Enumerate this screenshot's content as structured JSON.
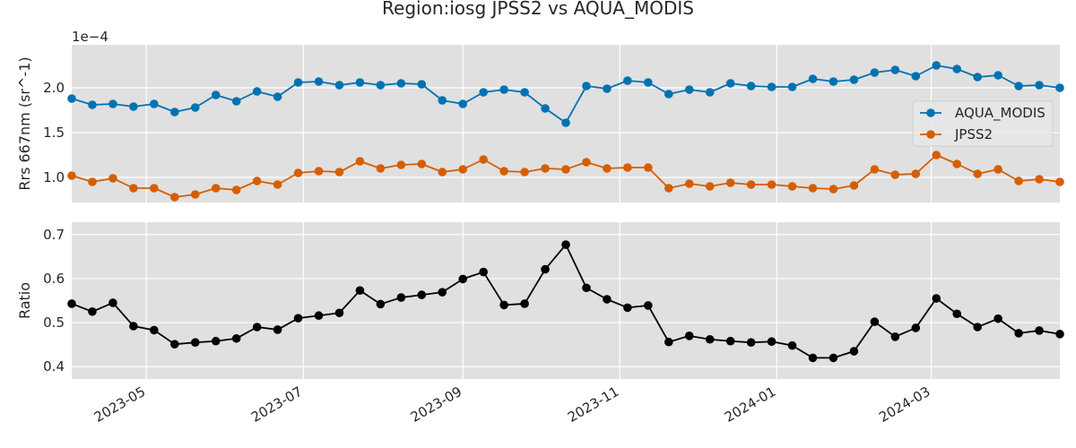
{
  "title": "Region:iosg JPSS2 vs AQUA_MODIS",
  "colors": {
    "aqua": "#0072b2",
    "jpss2": "#d55e00",
    "ratio": "#000000",
    "panel_bg": "#e0e0e0",
    "grid": "#ffffff"
  },
  "chart_data": [
    {
      "type": "line",
      "ylabel": "Rrs 667nm (sr^-1)",
      "scale_label": "1e−4",
      "ylim": [
        0.72,
        2.48
      ],
      "yticks": [
        1.0,
        1.5,
        2.0
      ],
      "ytick_labels": [
        "1.0",
        "1.5",
        "2.0"
      ],
      "legend": {
        "position": "right",
        "entries": [
          "AQUA_MODIS",
          "JPSS2"
        ]
      },
      "grid": true,
      "x": [
        "2023-04-02",
        "2023-04-10",
        "2023-04-18",
        "2023-04-26",
        "2023-05-04",
        "2023-05-12",
        "2023-05-20",
        "2023-05-28",
        "2023-06-05",
        "2023-06-13",
        "2023-06-21",
        "2023-06-29",
        "2023-07-07",
        "2023-07-15",
        "2023-07-23",
        "2023-07-31",
        "2023-08-08",
        "2023-08-16",
        "2023-08-24",
        "2023-09-01",
        "2023-09-09",
        "2023-09-17",
        "2023-09-25",
        "2023-10-03",
        "2023-10-11",
        "2023-10-19",
        "2023-10-27",
        "2023-11-04",
        "2023-11-12",
        "2023-11-20",
        "2023-11-28",
        "2023-12-06",
        "2023-12-14",
        "2023-12-22",
        "2023-12-30",
        "2024-01-07",
        "2024-01-15",
        "2024-01-23",
        "2024-01-31",
        "2024-02-08",
        "2024-02-16",
        "2024-02-24",
        "2024-03-03",
        "2024-03-11",
        "2024-03-19",
        "2024-03-27",
        "2024-04-04",
        "2024-04-12",
        "2024-04-20"
      ],
      "series": [
        {
          "name": "AQUA_MODIS",
          "color": "#0072b2",
          "values": [
            1.88,
            1.81,
            1.82,
            1.79,
            1.82,
            1.73,
            1.78,
            1.92,
            1.85,
            1.96,
            1.9,
            2.06,
            2.07,
            2.03,
            2.06,
            2.03,
            2.05,
            2.04,
            1.86,
            1.82,
            1.95,
            1.98,
            1.95,
            1.77,
            1.61,
            2.02,
            1.99,
            2.08,
            2.06,
            1.93,
            1.98,
            1.95,
            2.05,
            2.02,
            2.01,
            2.01,
            2.1,
            2.07,
            2.09,
            2.17,
            2.2,
            2.13,
            2.25,
            2.21,
            2.12,
            2.14,
            2.02,
            2.03,
            2.0
          ]
        },
        {
          "name": "JPSS2",
          "color": "#d55e00",
          "values": [
            1.02,
            0.95,
            0.99,
            0.88,
            0.88,
            0.78,
            0.81,
            0.88,
            0.86,
            0.96,
            0.92,
            1.05,
            1.07,
            1.06,
            1.18,
            1.1,
            1.14,
            1.15,
            1.06,
            1.09,
            1.2,
            1.07,
            1.06,
            1.1,
            1.09,
            1.17,
            1.1,
            1.11,
            1.11,
            0.88,
            0.93,
            0.9,
            0.94,
            0.92,
            0.92,
            0.9,
            0.88,
            0.87,
            0.91,
            1.09,
            1.03,
            1.04,
            1.25,
            1.15,
            1.04,
            1.09,
            0.96,
            0.98,
            0.95
          ]
        }
      ]
    },
    {
      "type": "line",
      "ylabel": "Ratio",
      "ylim": [
        0.372,
        0.728
      ],
      "yticks": [
        0.4,
        0.5,
        0.6,
        0.7
      ],
      "ytick_labels": [
        "0.4",
        "0.5",
        "0.6",
        "0.7"
      ],
      "grid": true,
      "xlim": [
        "2023-04-02",
        "2024-04-20"
      ],
      "xticks": [
        "2023-05-01",
        "2023-07-01",
        "2023-09-01",
        "2023-11-01",
        "2024-01-01",
        "2024-03-01"
      ],
      "xtick_labels": [
        "2023-05",
        "2023-07",
        "2023-09",
        "2023-11",
        "2024-01",
        "2024-03"
      ],
      "series": [
        {
          "color": "#000000",
          "values": [
            0.543,
            0.525,
            0.545,
            0.492,
            0.483,
            0.451,
            0.455,
            0.458,
            0.464,
            0.49,
            0.484,
            0.51,
            0.516,
            0.522,
            0.573,
            0.542,
            0.557,
            0.563,
            0.569,
            0.599,
            0.615,
            0.54,
            0.543,
            0.621,
            0.677,
            0.579,
            0.553,
            0.534,
            0.539,
            0.456,
            0.47,
            0.462,
            0.458,
            0.455,
            0.457,
            0.448,
            0.42,
            0.42,
            0.435,
            0.502,
            0.468,
            0.488,
            0.555,
            0.52,
            0.49,
            0.509,
            0.476,
            0.482,
            0.474
          ]
        }
      ]
    }
  ]
}
